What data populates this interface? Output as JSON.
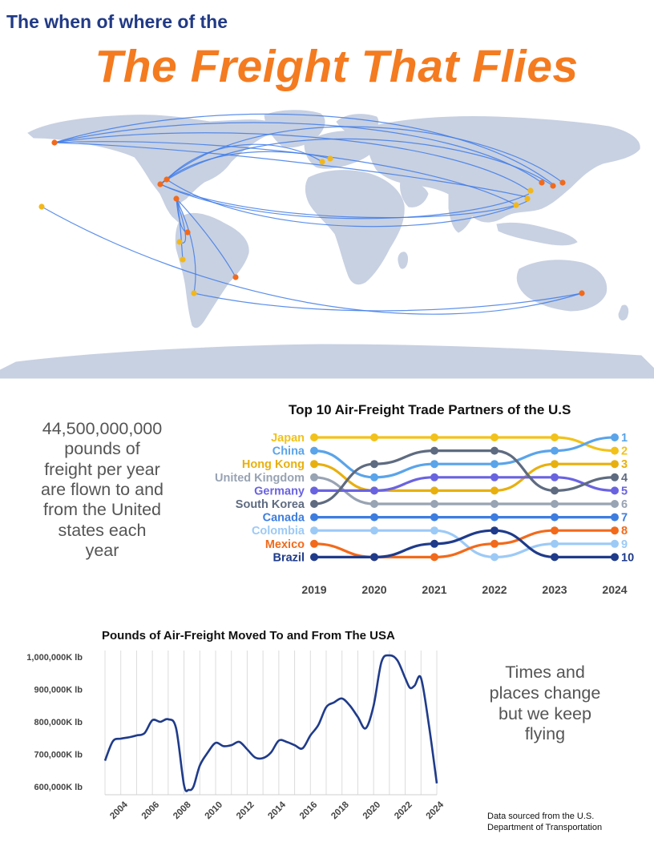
{
  "header": {
    "kicker": "The when of where of the",
    "headline": "The Freight That Flies"
  },
  "stat": {
    "lines": [
      "44,500,000,000",
      "pounds of",
      "freight per year",
      "are flown to and",
      "from the United",
      "states each",
      "year"
    ]
  },
  "tagline": {
    "lines": [
      "Times and",
      "places change",
      "but we keep",
      "flying"
    ]
  },
  "source": {
    "lines": [
      "Data sourced from the U.S.",
      "Department of Transportation"
    ]
  },
  "colors": {
    "title_blue": "#213a86",
    "title_orange": "#f47b20",
    "land": "#c8d1e2",
    "route": "#3f7be8",
    "marker_orange": "#f26a1b",
    "marker_yellow": "#f2b71a",
    "trend_line": "#1f3b8a"
  },
  "chart_data": [
    {
      "type": "bump",
      "title": "Top 10 Air-Freight Trade Partners of the U.S",
      "x": [
        "2019",
        "2020",
        "2021",
        "2022",
        "2023",
        "2024"
      ],
      "rank_labels": [
        "1",
        "2",
        "3",
        "4",
        "5",
        "6",
        "7",
        "8",
        "9",
        "10"
      ],
      "series": [
        {
          "name": "Japan",
          "color": "#f2c21a",
          "ranks": [
            1,
            1,
            1,
            1,
            1,
            2
          ]
        },
        {
          "name": "China",
          "color": "#5aa4ea",
          "ranks": [
            2,
            4,
            3,
            3,
            2,
            1
          ]
        },
        {
          "name": "Hong Kong",
          "color": "#e8b00f",
          "ranks": [
            3,
            5,
            5,
            5,
            3,
            3
          ]
        },
        {
          "name": "United Kingdom",
          "color": "#98a3b3",
          "ranks": [
            4,
            6,
            6,
            6,
            6,
            6
          ]
        },
        {
          "name": "Germany",
          "color": "#6a63e0",
          "ranks": [
            5,
            5,
            4,
            4,
            4,
            5
          ]
        },
        {
          "name": "South Korea",
          "color": "#5e6b80",
          "ranks": [
            6,
            3,
            2,
            2,
            5,
            4
          ]
        },
        {
          "name": "Canada",
          "color": "#3d7de0",
          "ranks": [
            7,
            7,
            7,
            7,
            7,
            7
          ]
        },
        {
          "name": "Colombia",
          "color": "#9ccaf6",
          "ranks": [
            8,
            8,
            8,
            10,
            9,
            9
          ]
        },
        {
          "name": "Mexico",
          "color": "#f26a1b",
          "ranks": [
            9,
            10,
            10,
            9,
            8,
            8
          ]
        },
        {
          "name": "Brazil",
          "color": "#1f3b8a",
          "ranks": [
            10,
            10,
            9,
            8,
            10,
            10
          ]
        }
      ]
    },
    {
      "type": "line",
      "title": "Pounds of Air-Freight Moved To and From The USA",
      "x_ticks": [
        "2004",
        "2006",
        "2008",
        "2010",
        "2012",
        "2014",
        "2016",
        "2018",
        "2020",
        "2022",
        "2024"
      ],
      "y_ticks": [
        "1,000,000K lb",
        "900,000K lb",
        "800,000K lb",
        "700,000K lb",
        "600,000K lb"
      ],
      "ylim": [
        575000,
        1020000
      ],
      "xlim": [
        2003,
        2024
      ],
      "unit": "thousand lb",
      "grid": "vertical",
      "series": [
        {
          "x": [
            2003.0,
            2003.5,
            2004.0,
            2004.5,
            2005.0,
            2005.5,
            2006.0,
            2006.5,
            2007.0,
            2007.5,
            2008.0,
            2008.3,
            2008.6,
            2009.0,
            2009.5,
            2010.0,
            2010.5,
            2011.0,
            2011.5,
            2012.0,
            2012.5,
            2013.0,
            2013.5,
            2014.0,
            2014.5,
            2015.0,
            2015.5,
            2016.0,
            2016.5,
            2017.0,
            2017.5,
            2018.0,
            2018.5,
            2019.0,
            2019.5,
            2020.0,
            2020.5,
            2021.0,
            2021.5,
            2022.0,
            2022.3,
            2022.6,
            2023.0,
            2023.5,
            2024.0
          ],
          "y": [
            680000,
            740000,
            748000,
            752000,
            758000,
            765000,
            805000,
            800000,
            808000,
            780000,
            605000,
            590000,
            600000,
            665000,
            705000,
            735000,
            725000,
            728000,
            738000,
            715000,
            690000,
            688000,
            705000,
            742000,
            738000,
            728000,
            718000,
            758000,
            790000,
            845000,
            860000,
            872000,
            850000,
            815000,
            780000,
            850000,
            985000,
            1005000,
            990000,
            935000,
            905000,
            912000,
            935000,
            790000,
            610000
          ]
        }
      ]
    }
  ]
}
